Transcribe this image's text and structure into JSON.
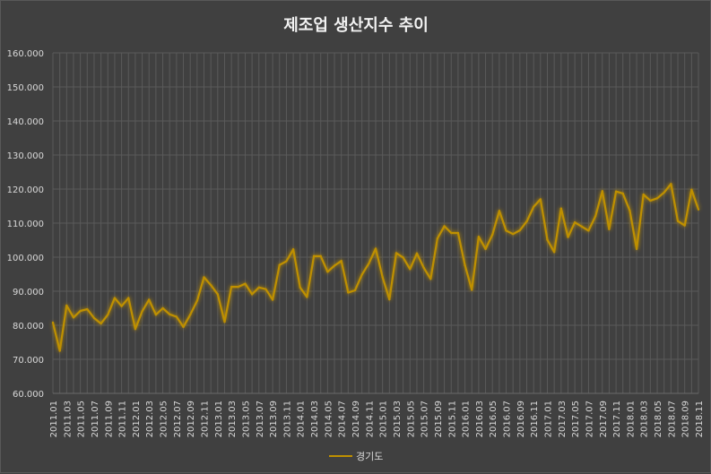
{
  "chart_data": {
    "type": "line",
    "title": "제조업 생산지수 추이",
    "xlabel": "",
    "ylabel": "",
    "ylim": [
      60,
      160
    ],
    "yticks": [
      "60.000",
      "70.000",
      "80.000",
      "90.000",
      "100.000",
      "110.000",
      "120.000",
      "130.000",
      "140.000",
      "150.000",
      "160.000"
    ],
    "grid": true,
    "legend_position": "bottom",
    "x_tick_labels": [
      "2011.01",
      "2011.03",
      "2011.05",
      "2011.07",
      "2011.09",
      "2011.11",
      "2012.01",
      "2012.03",
      "2012.05",
      "2012.07",
      "2012.09",
      "2012.11",
      "2013.01",
      "2013.03",
      "2013.05",
      "2013.07",
      "2013.09",
      "2013.11",
      "2014.01",
      "2014.03",
      "2014.05",
      "2014.07",
      "2014.09",
      "2014.11",
      "2015.01",
      "2015.03",
      "2015.05",
      "2015.07",
      "2015.09",
      "2015.11",
      "2016.01",
      "2016.03",
      "2016.05",
      "2016.07",
      "2016.09",
      "2016.11",
      "2017.01",
      "2017.03",
      "2017.05",
      "2017.07",
      "2017.09",
      "2017.11",
      "2018.01",
      "2018.03",
      "2018.05",
      "2018.07",
      "2018.09",
      "2018.11"
    ],
    "series": [
      {
        "name": "경기도",
        "color": "#bf9000",
        "values": [
          80.8,
          72.5,
          85.8,
          82.3,
          84.2,
          84.7,
          82.1,
          80.5,
          83.1,
          88.0,
          85.6,
          88.0,
          78.9,
          84.1,
          87.5,
          83.1,
          85.0,
          83.2,
          82.5,
          79.5,
          83.1,
          87.2,
          94.1,
          91.8,
          89.1,
          81.0,
          91.3,
          91.3,
          92.2,
          89.1,
          91.1,
          90.6,
          87.5,
          97.7,
          98.8,
          102.3,
          91.1,
          88.3,
          100.3,
          100.3,
          95.7,
          97.5,
          98.9,
          89.6,
          90.3,
          94.9,
          98.1,
          102.5,
          94.1,
          87.6,
          101.2,
          99.9,
          96.5,
          101.1,
          96.9,
          93.6,
          105.5,
          109.1,
          107.1,
          107.1,
          97.6,
          90.4,
          106.0,
          102.4,
          106.6,
          113.6,
          107.8,
          106.8,
          107.9,
          110.5,
          114.8,
          117.0,
          105.1,
          101.5,
          114.3,
          105.9,
          110.2,
          109.0,
          107.8,
          112.0,
          119.4,
          108.2,
          119.3,
          118.7,
          113.7,
          102.4,
          118.4,
          116.6,
          117.3,
          119.0,
          121.5,
          110.6,
          109.3,
          119.8,
          114.0
        ]
      }
    ]
  }
}
